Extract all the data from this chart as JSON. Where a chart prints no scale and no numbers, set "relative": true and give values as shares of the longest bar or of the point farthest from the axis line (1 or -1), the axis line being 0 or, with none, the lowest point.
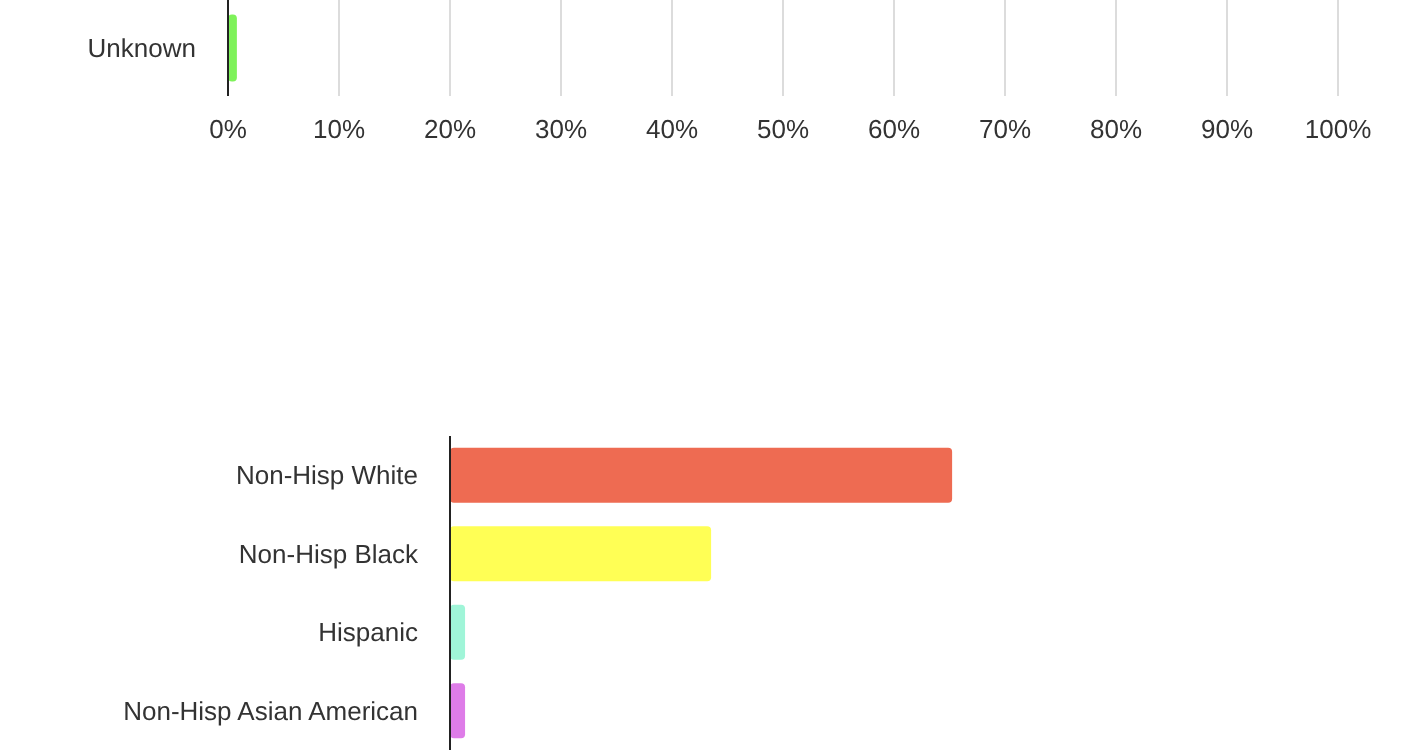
{
  "chart_data": [
    {
      "type": "bar",
      "orientation": "horizontal",
      "categories": [
        "Unknown"
      ],
      "series": [
        {
          "color": "#7ef25a",
          "values": [
            0.8
          ]
        }
      ],
      "xlim": [
        0,
        100
      ],
      "xticks": [
        {
          "value": 0,
          "label": "0%"
        },
        {
          "value": 10,
          "label": "10%"
        },
        {
          "value": 20,
          "label": "20%"
        },
        {
          "value": 30,
          "label": "30%"
        },
        {
          "value": 40,
          "label": "40%"
        },
        {
          "value": 50,
          "label": "50%"
        },
        {
          "value": 60,
          "label": "60%"
        },
        {
          "value": 70,
          "label": "70%"
        },
        {
          "value": 80,
          "label": "80%"
        },
        {
          "value": 90,
          "label": "90%"
        },
        {
          "value": 100,
          "label": "100%"
        }
      ],
      "grid": "x"
    },
    {
      "type": "bar",
      "orientation": "horizontal",
      "relative": true,
      "categories": [
        "Non-Hisp White",
        "Non-Hisp Black",
        "Hispanic",
        "Non-Hisp Asian American"
      ],
      "series": [
        {
          "colors": [
            "#ee6b52",
            "#ffff55",
            "#a0f5d8",
            "#de7ce8"
          ],
          "values": [
            1,
            0.52,
            0.03,
            0.03
          ]
        }
      ],
      "tick_labels": "y"
    }
  ]
}
